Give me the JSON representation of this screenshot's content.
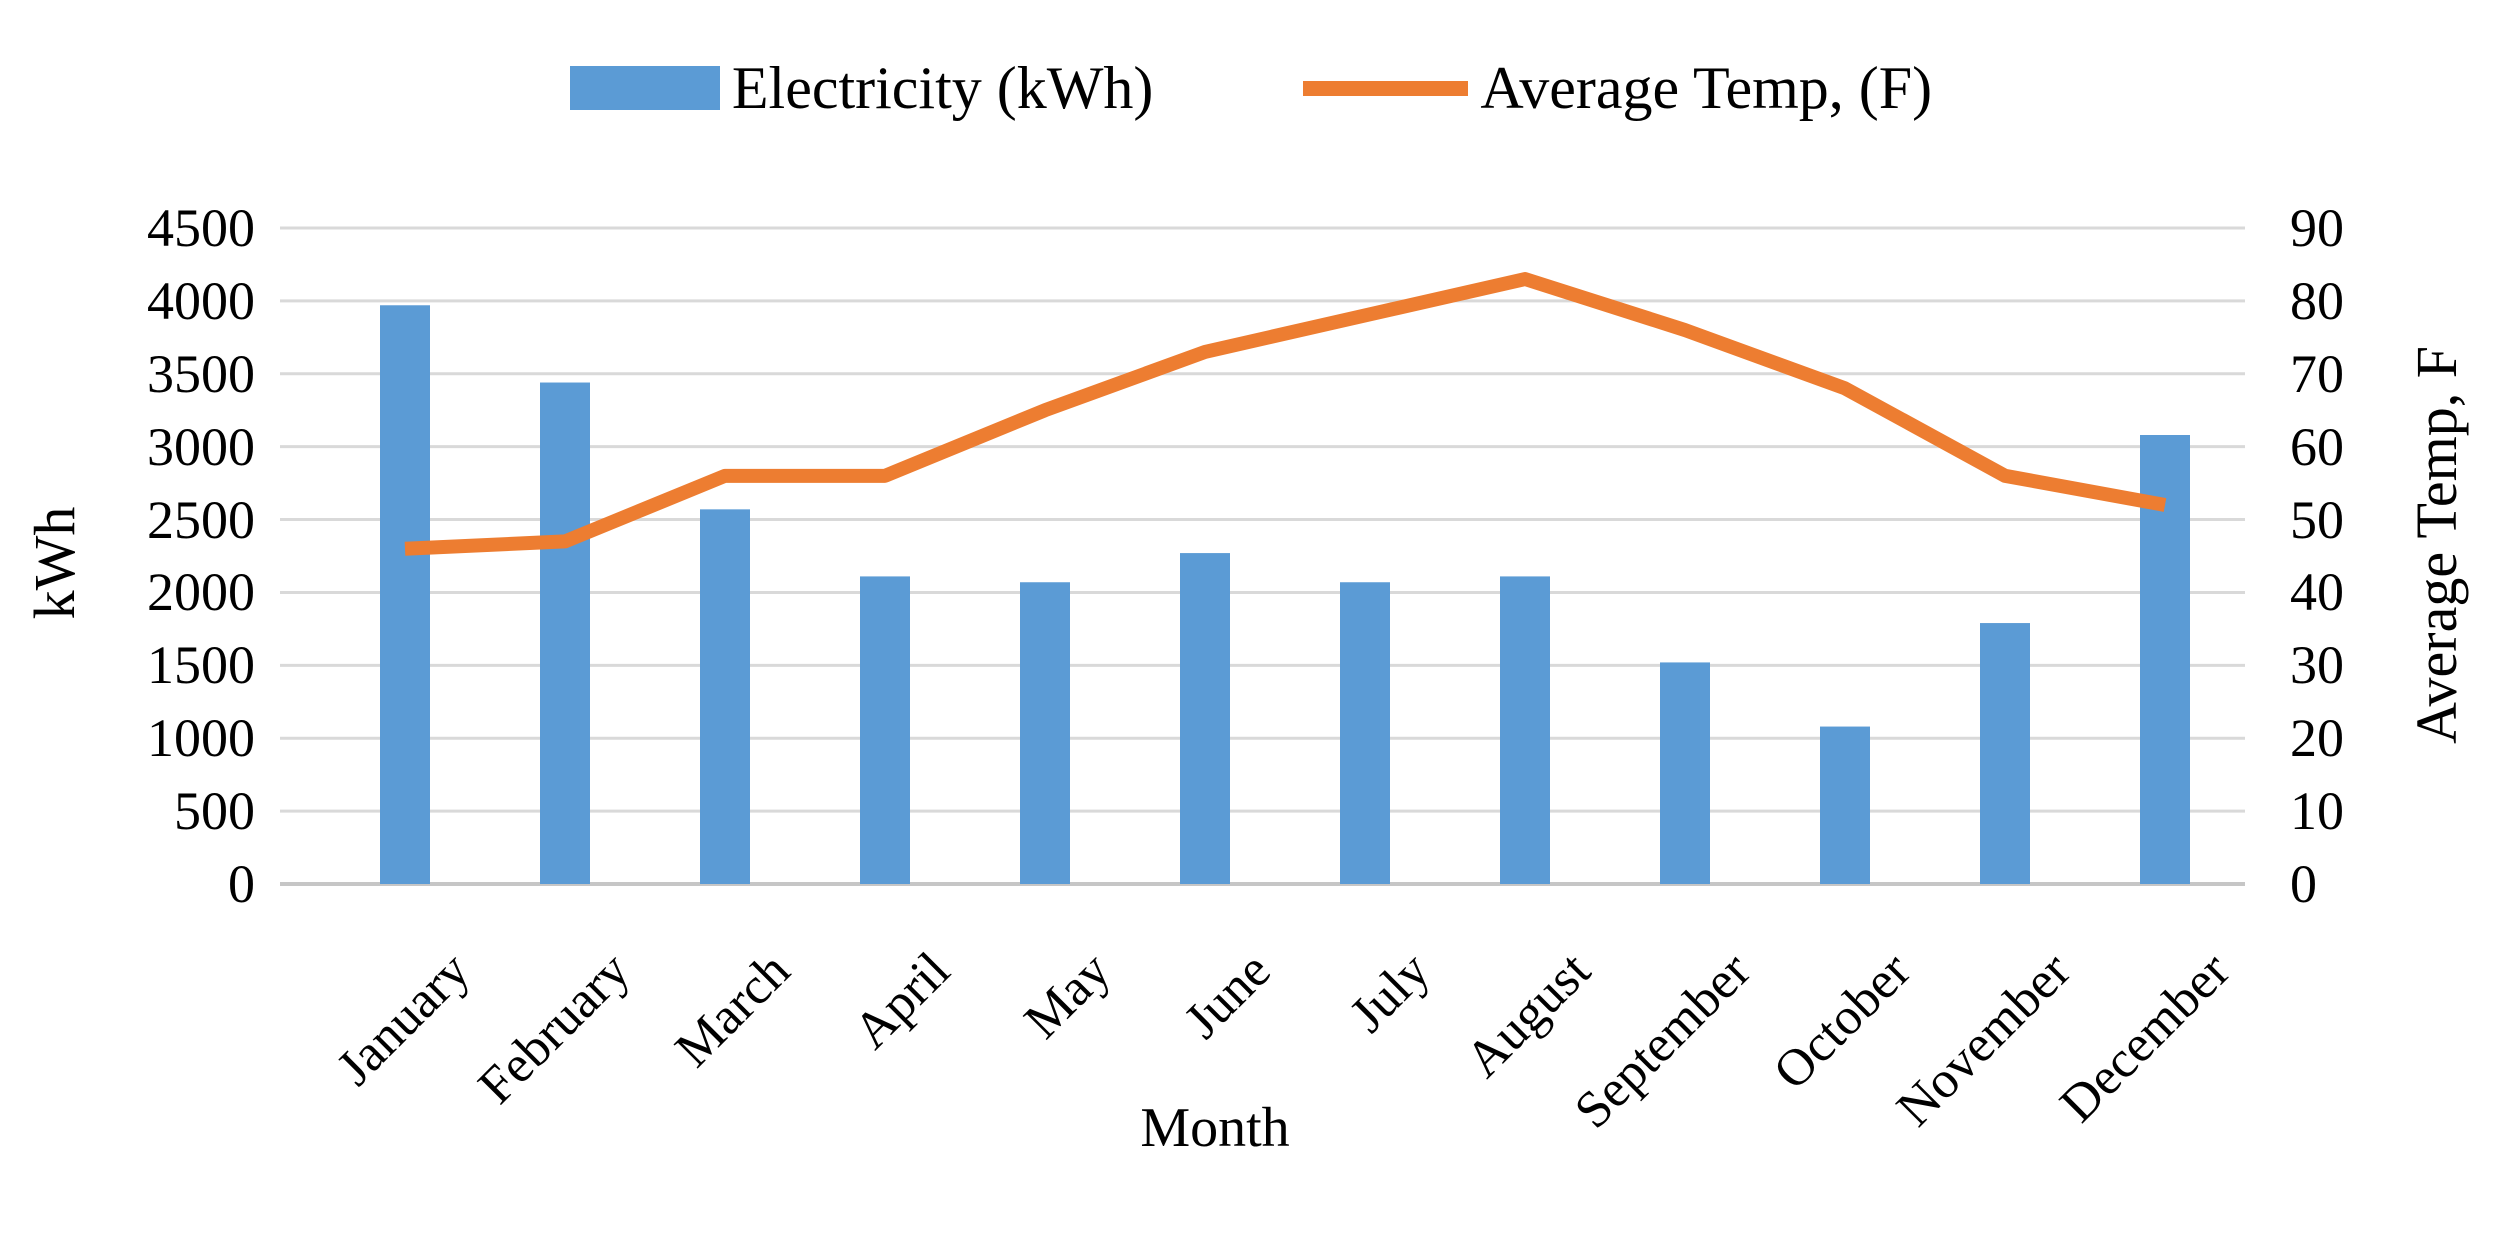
{
  "chart_data": {
    "type": "combo",
    "title": "",
    "categories": [
      "January",
      "February",
      "March",
      "April",
      "May",
      "June",
      "July",
      "August",
      "September",
      "October",
      "November",
      "December"
    ],
    "series": [
      {
        "name": "Electricity (kWh)",
        "type": "bar",
        "axis": "left",
        "color": "#5b9bd5",
        "values": [
          3970,
          3440,
          2570,
          2110,
          2070,
          2270,
          2070,
          2110,
          1520,
          1080,
          1790,
          3080
        ]
      },
      {
        "name": "Average Temp, (F)",
        "type": "line",
        "axis": "right",
        "color": "#ed7d31",
        "values": [
          46,
          47,
          56,
          56,
          65,
          73,
          78,
          83,
          76,
          68,
          56,
          52
        ]
      }
    ],
    "x_axis": {
      "label": "Month"
    },
    "left_axis": {
      "label": "kWh",
      "min": 0,
      "max": 4500,
      "step": 500,
      "ticks": [
        4500,
        4000,
        3500,
        3000,
        2500,
        2000,
        1500,
        1000,
        500,
        0
      ]
    },
    "right_axis": {
      "label": "Average Temp, F",
      "min": 0,
      "max": 90,
      "step": 10,
      "ticks": [
        90,
        80,
        70,
        60,
        50,
        40,
        30,
        20,
        10,
        0
      ]
    },
    "grid": true,
    "legend_position": "top",
    "grid_color": "#d9d9d9",
    "axis_line_color": "#c6c6c6",
    "text_color": "#000000"
  }
}
